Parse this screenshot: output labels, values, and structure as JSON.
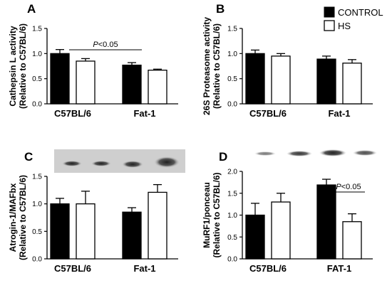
{
  "legend": [
    {
      "name": "CONTROL",
      "color": "#000000"
    },
    {
      "name": "HS",
      "color": "#ffffff"
    }
  ],
  "chart_data": [
    {
      "panel": "A",
      "type": "bar",
      "categories": [
        "C57BL/6",
        "Fat-1"
      ],
      "series": [
        {
          "name": "CONTROL",
          "values": [
            1.0,
            0.77
          ],
          "errors": [
            0.08,
            0.05
          ]
        },
        {
          "name": "HS",
          "values": [
            0.85,
            0.67
          ],
          "errors": [
            0.05,
            0.02
          ]
        }
      ],
      "ylabel": [
        "Cathepsin L activity",
        "(Relative to C57BL/6)"
      ],
      "ylim": [
        0,
        1.5
      ],
      "yticks": [
        "0.0",
        "0.5",
        "1.0",
        "1.5"
      ],
      "annotation": {
        "p": "P",
        "text": "<0.05"
      }
    },
    {
      "panel": "B",
      "type": "bar",
      "categories": [
        "C57BL/6",
        "Fat-1"
      ],
      "series": [
        {
          "name": "CONTROL",
          "values": [
            1.0,
            0.89
          ],
          "errors": [
            0.07,
            0.06
          ]
        },
        {
          "name": "HS",
          "values": [
            0.95,
            0.81
          ],
          "errors": [
            0.05,
            0.07
          ]
        }
      ],
      "ylabel": [
        "26S Proteasome activity",
        "(Relative to C57BL/6)"
      ],
      "ylim": [
        0,
        1.5
      ],
      "yticks": [
        "0.0",
        "0.5",
        "1.0",
        "1.5"
      ]
    },
    {
      "panel": "C",
      "type": "bar",
      "categories": [
        "C57BL/6",
        "Fat-1"
      ],
      "series": [
        {
          "name": "CONTROL",
          "values": [
            1.0,
            0.85
          ],
          "errors": [
            0.1,
            0.08
          ]
        },
        {
          "name": "HS",
          "values": [
            1.0,
            1.21
          ],
          "errors": [
            0.23,
            0.14
          ]
        }
      ],
      "ylabel": [
        "Atrogin-1/MAFbx",
        "(Relative to C57BL/6)"
      ],
      "ylim": [
        0,
        1.5
      ],
      "yticks": [
        "0.0",
        "0.5",
        "1.0",
        "1.5"
      ]
    },
    {
      "panel": "D",
      "type": "bar",
      "categories": [
        "C57BL/6",
        "FAT-1"
      ],
      "series": [
        {
          "name": "CONTROL",
          "values": [
            1.0,
            1.69
          ],
          "errors": [
            0.27,
            0.13
          ]
        },
        {
          "name": "HS",
          "values": [
            1.3,
            0.85
          ],
          "errors": [
            0.2,
            0.18
          ]
        }
      ],
      "ylabel": [
        "MuRF1/ponceau",
        "(Relative to C57BL/6)"
      ],
      "ylim": [
        0,
        2.0
      ],
      "yticks": [
        "0.0",
        "0.5",
        "1.0",
        "1.5",
        "2.0"
      ],
      "annotation": {
        "p": "P",
        "text": "<0.05"
      }
    }
  ]
}
